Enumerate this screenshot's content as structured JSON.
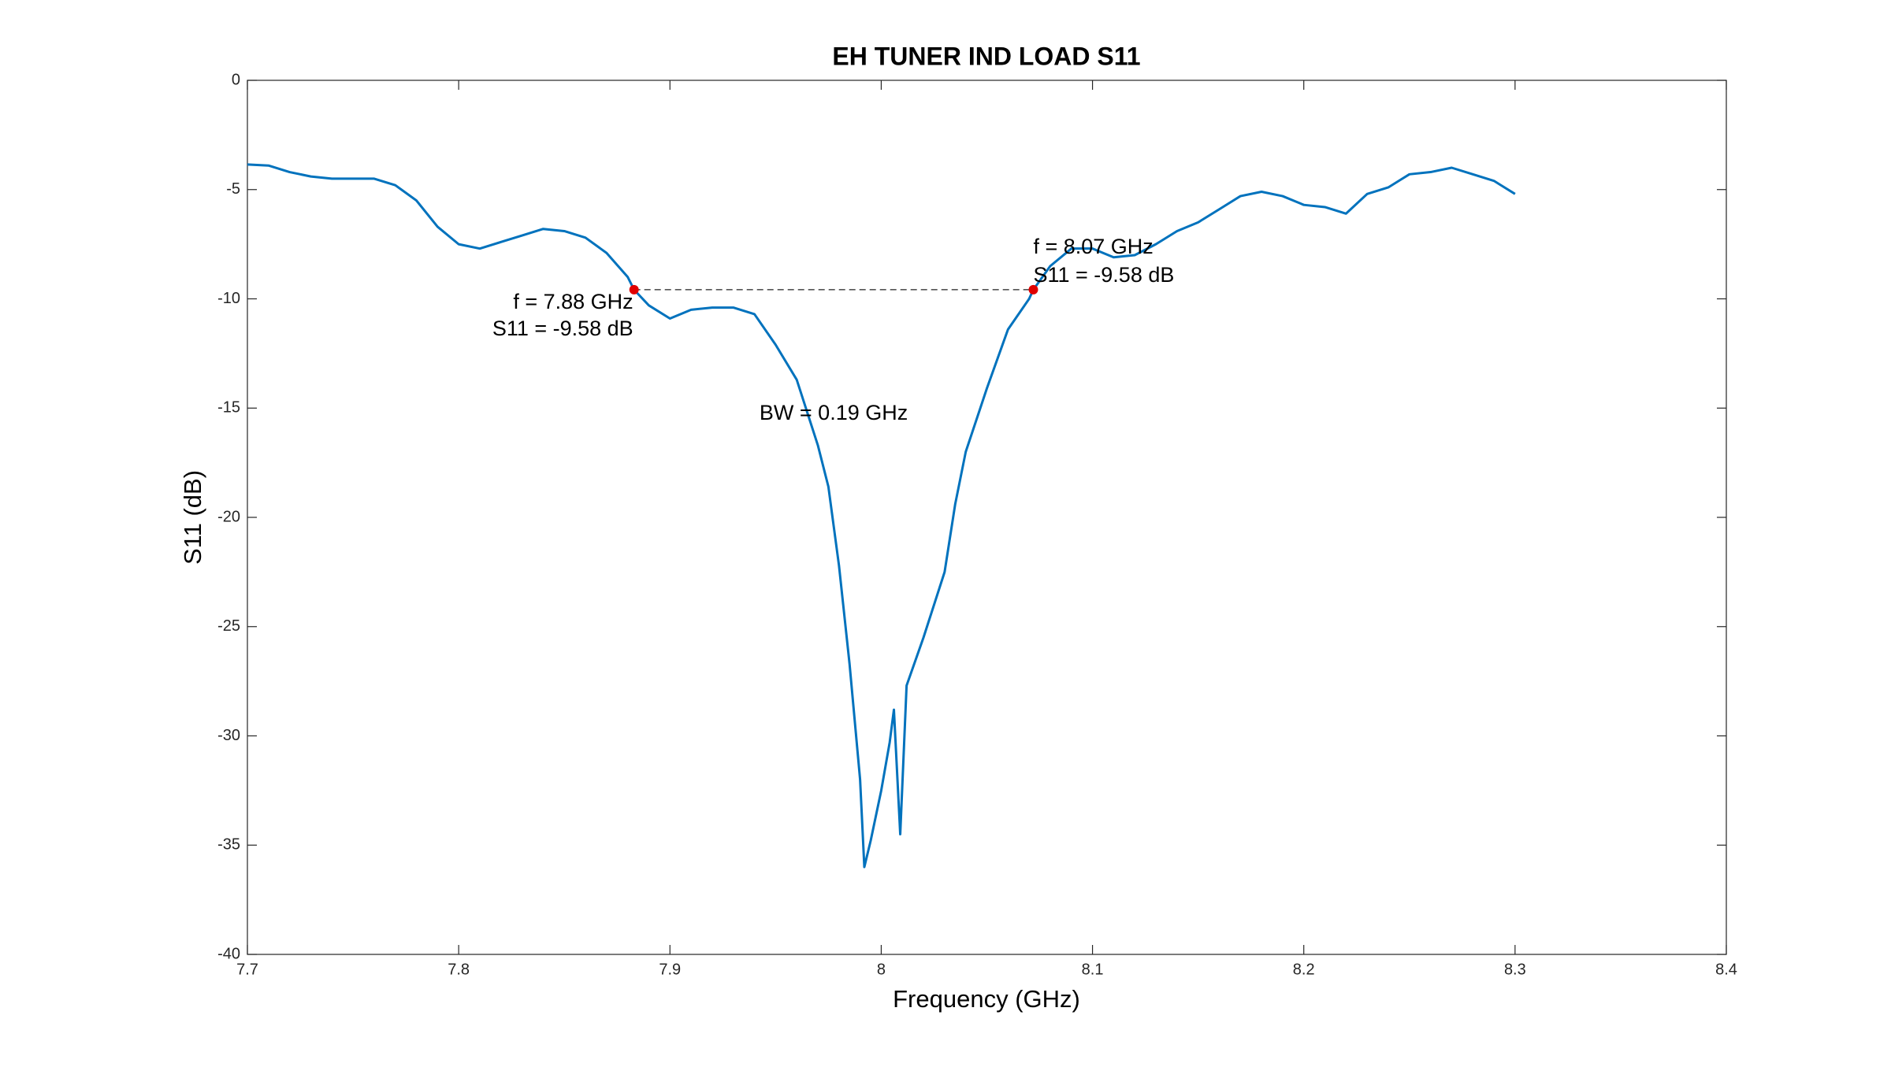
{
  "chart_data": {
    "type": "line",
    "title": "EH TUNER IND LOAD S11",
    "xlabel": "Frequency (GHz)",
    "ylabel": "S11 (dB)",
    "x": [
      7.7,
      7.71,
      7.72,
      7.73,
      7.74,
      7.75,
      7.76,
      7.77,
      7.78,
      7.79,
      7.8,
      7.81,
      7.82,
      7.83,
      7.84,
      7.85,
      7.86,
      7.87,
      7.88,
      7.883,
      7.89,
      7.9,
      7.91,
      7.92,
      7.93,
      7.94,
      7.95,
      7.96,
      7.97,
      7.975,
      7.98,
      7.985,
      7.99,
      7.992,
      7.995,
      8.0,
      8.004,
      8.006,
      8.009,
      8.012,
      8.02,
      8.03,
      8.035,
      8.04,
      8.05,
      8.06,
      8.07,
      8.072,
      8.08,
      8.09,
      8.1,
      8.11,
      8.12,
      8.13,
      8.14,
      8.15,
      8.16,
      8.17,
      8.18,
      8.19,
      8.2,
      8.21,
      8.22,
      8.23,
      8.24,
      8.25,
      8.26,
      8.27,
      8.28,
      8.29,
      8.3
    ],
    "values": [
      -3.85,
      -3.9,
      -4.2,
      -4.4,
      -4.5,
      -4.5,
      -4.5,
      -4.8,
      -5.5,
      -6.7,
      -7.5,
      -7.7,
      -7.4,
      -7.1,
      -6.8,
      -6.9,
      -7.2,
      -7.9,
      -9.0,
      -9.58,
      -10.3,
      -10.9,
      -10.5,
      -10.4,
      -10.4,
      -10.7,
      -12.1,
      -13.7,
      -16.7,
      -18.6,
      -22.2,
      -26.7,
      -32.0,
      -36.0,
      -34.8,
      -32.5,
      -30.3,
      -28.8,
      -34.5,
      -27.7,
      -25.5,
      -22.5,
      -19.4,
      -17.0,
      -14.1,
      -11.4,
      -10.0,
      -9.58,
      -8.5,
      -7.7,
      -7.7,
      -8.1,
      -8.0,
      -7.5,
      -6.9,
      -6.5,
      -5.9,
      -5.3,
      -5.1,
      -5.3,
      -5.7,
      -5.8,
      -6.1,
      -5.2,
      -4.9,
      -4.3,
      -4.2,
      -4.0,
      -4.3,
      -4.6,
      -5.2
    ],
    "color": "#0072bd",
    "markers": {
      "x": [
        7.883,
        8.072
      ],
      "values": [
        -9.58,
        -9.58
      ],
      "color": "#e00000"
    },
    "annotations": [
      "f = 7.88 GHz",
      "S11 = -9.58 dB",
      "f = 8.07 GHz",
      "S11 = -9.58 dB",
      "BW = 0.19 GHz"
    ],
    "xlim": [
      7.7,
      8.4
    ],
    "xticks": [
      7.7,
      7.8,
      7.9,
      8,
      8.1,
      8.2,
      8.3,
      8.4
    ],
    "ylim": [
      -40,
      0
    ],
    "yticks": [
      -40,
      -35,
      -30,
      -25,
      -20,
      -15,
      -10,
      -5,
      0
    ],
    "grid": false
  }
}
